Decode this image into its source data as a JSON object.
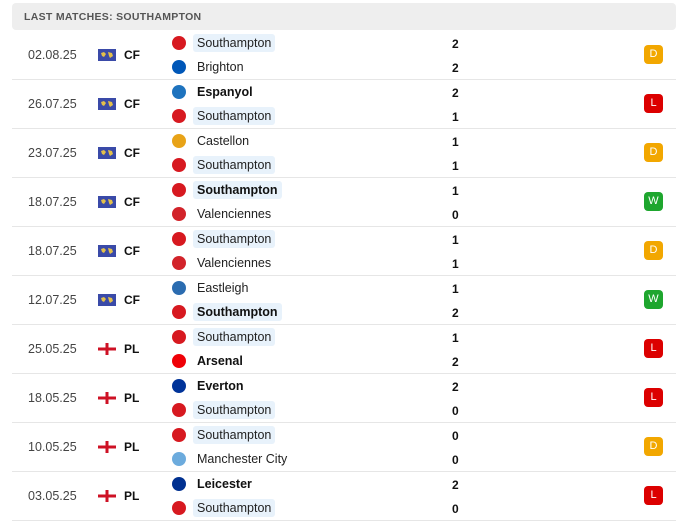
{
  "header": {
    "title": "LAST MATCHES: SOUTHAMPTON"
  },
  "colors": {
    "D": "#f2a700",
    "L": "#dc0000",
    "W": "#1ea62e",
    "highlight": "#e8f2fb"
  },
  "matches": [
    {
      "date": "02.08.25",
      "competition": "CF",
      "flag": "world-flag-icon",
      "home": {
        "name": "Southampton",
        "score": "2",
        "bold": false,
        "logo": "southampton-logo"
      },
      "away": {
        "name": "Brighton",
        "score": "2",
        "bold": false,
        "logo": "brighton-logo"
      },
      "result": "D"
    },
    {
      "date": "26.07.25",
      "competition": "CF",
      "flag": "world-flag-icon",
      "home": {
        "name": "Espanyol",
        "score": "2",
        "bold": true,
        "logo": "espanyol-logo"
      },
      "away": {
        "name": "Southampton",
        "score": "1",
        "bold": false,
        "logo": "southampton-logo"
      },
      "result": "L"
    },
    {
      "date": "23.07.25",
      "competition": "CF",
      "flag": "world-flag-icon",
      "home": {
        "name": "Castellon",
        "score": "1",
        "bold": false,
        "logo": "castellon-logo"
      },
      "away": {
        "name": "Southampton",
        "score": "1",
        "bold": false,
        "logo": "southampton-logo"
      },
      "result": "D"
    },
    {
      "date": "18.07.25",
      "competition": "CF",
      "flag": "world-flag-icon",
      "home": {
        "name": "Southampton",
        "score": "1",
        "bold": true,
        "logo": "southampton-logo"
      },
      "away": {
        "name": "Valenciennes",
        "score": "0",
        "bold": false,
        "logo": "valenciennes-logo"
      },
      "result": "W"
    },
    {
      "date": "18.07.25",
      "competition": "CF",
      "flag": "world-flag-icon",
      "home": {
        "name": "Southampton",
        "score": "1",
        "bold": false,
        "logo": "southampton-logo"
      },
      "away": {
        "name": "Valenciennes",
        "score": "1",
        "bold": false,
        "logo": "valenciennes-logo"
      },
      "result": "D"
    },
    {
      "date": "12.07.25",
      "competition": "CF",
      "flag": "world-flag-icon",
      "home": {
        "name": "Eastleigh",
        "score": "1",
        "bold": false,
        "logo": "eastleigh-logo"
      },
      "away": {
        "name": "Southampton",
        "score": "2",
        "bold": true,
        "logo": "southampton-logo"
      },
      "result": "W"
    },
    {
      "date": "25.05.25",
      "competition": "PL",
      "flag": "england-flag-icon",
      "home": {
        "name": "Southampton",
        "score": "1",
        "bold": false,
        "logo": "southampton-logo"
      },
      "away": {
        "name": "Arsenal",
        "score": "2",
        "bold": true,
        "logo": "arsenal-logo"
      },
      "result": "L"
    },
    {
      "date": "18.05.25",
      "competition": "PL",
      "flag": "england-flag-icon",
      "home": {
        "name": "Everton",
        "score": "2",
        "bold": true,
        "logo": "everton-logo"
      },
      "away": {
        "name": "Southampton",
        "score": "0",
        "bold": false,
        "logo": "southampton-logo"
      },
      "result": "L"
    },
    {
      "date": "10.05.25",
      "competition": "PL",
      "flag": "england-flag-icon",
      "home": {
        "name": "Southampton",
        "score": "0",
        "bold": false,
        "logo": "southampton-logo"
      },
      "away": {
        "name": "Manchester City",
        "score": "0",
        "bold": false,
        "logo": "manchester-city-logo"
      },
      "result": "D"
    },
    {
      "date": "03.05.25",
      "competition": "PL",
      "flag": "england-flag-icon",
      "home": {
        "name": "Leicester",
        "score": "2",
        "bold": true,
        "logo": "leicester-logo"
      },
      "away": {
        "name": "Southampton",
        "score": "0",
        "bold": false,
        "logo": "southampton-logo"
      },
      "result": "L"
    }
  ]
}
